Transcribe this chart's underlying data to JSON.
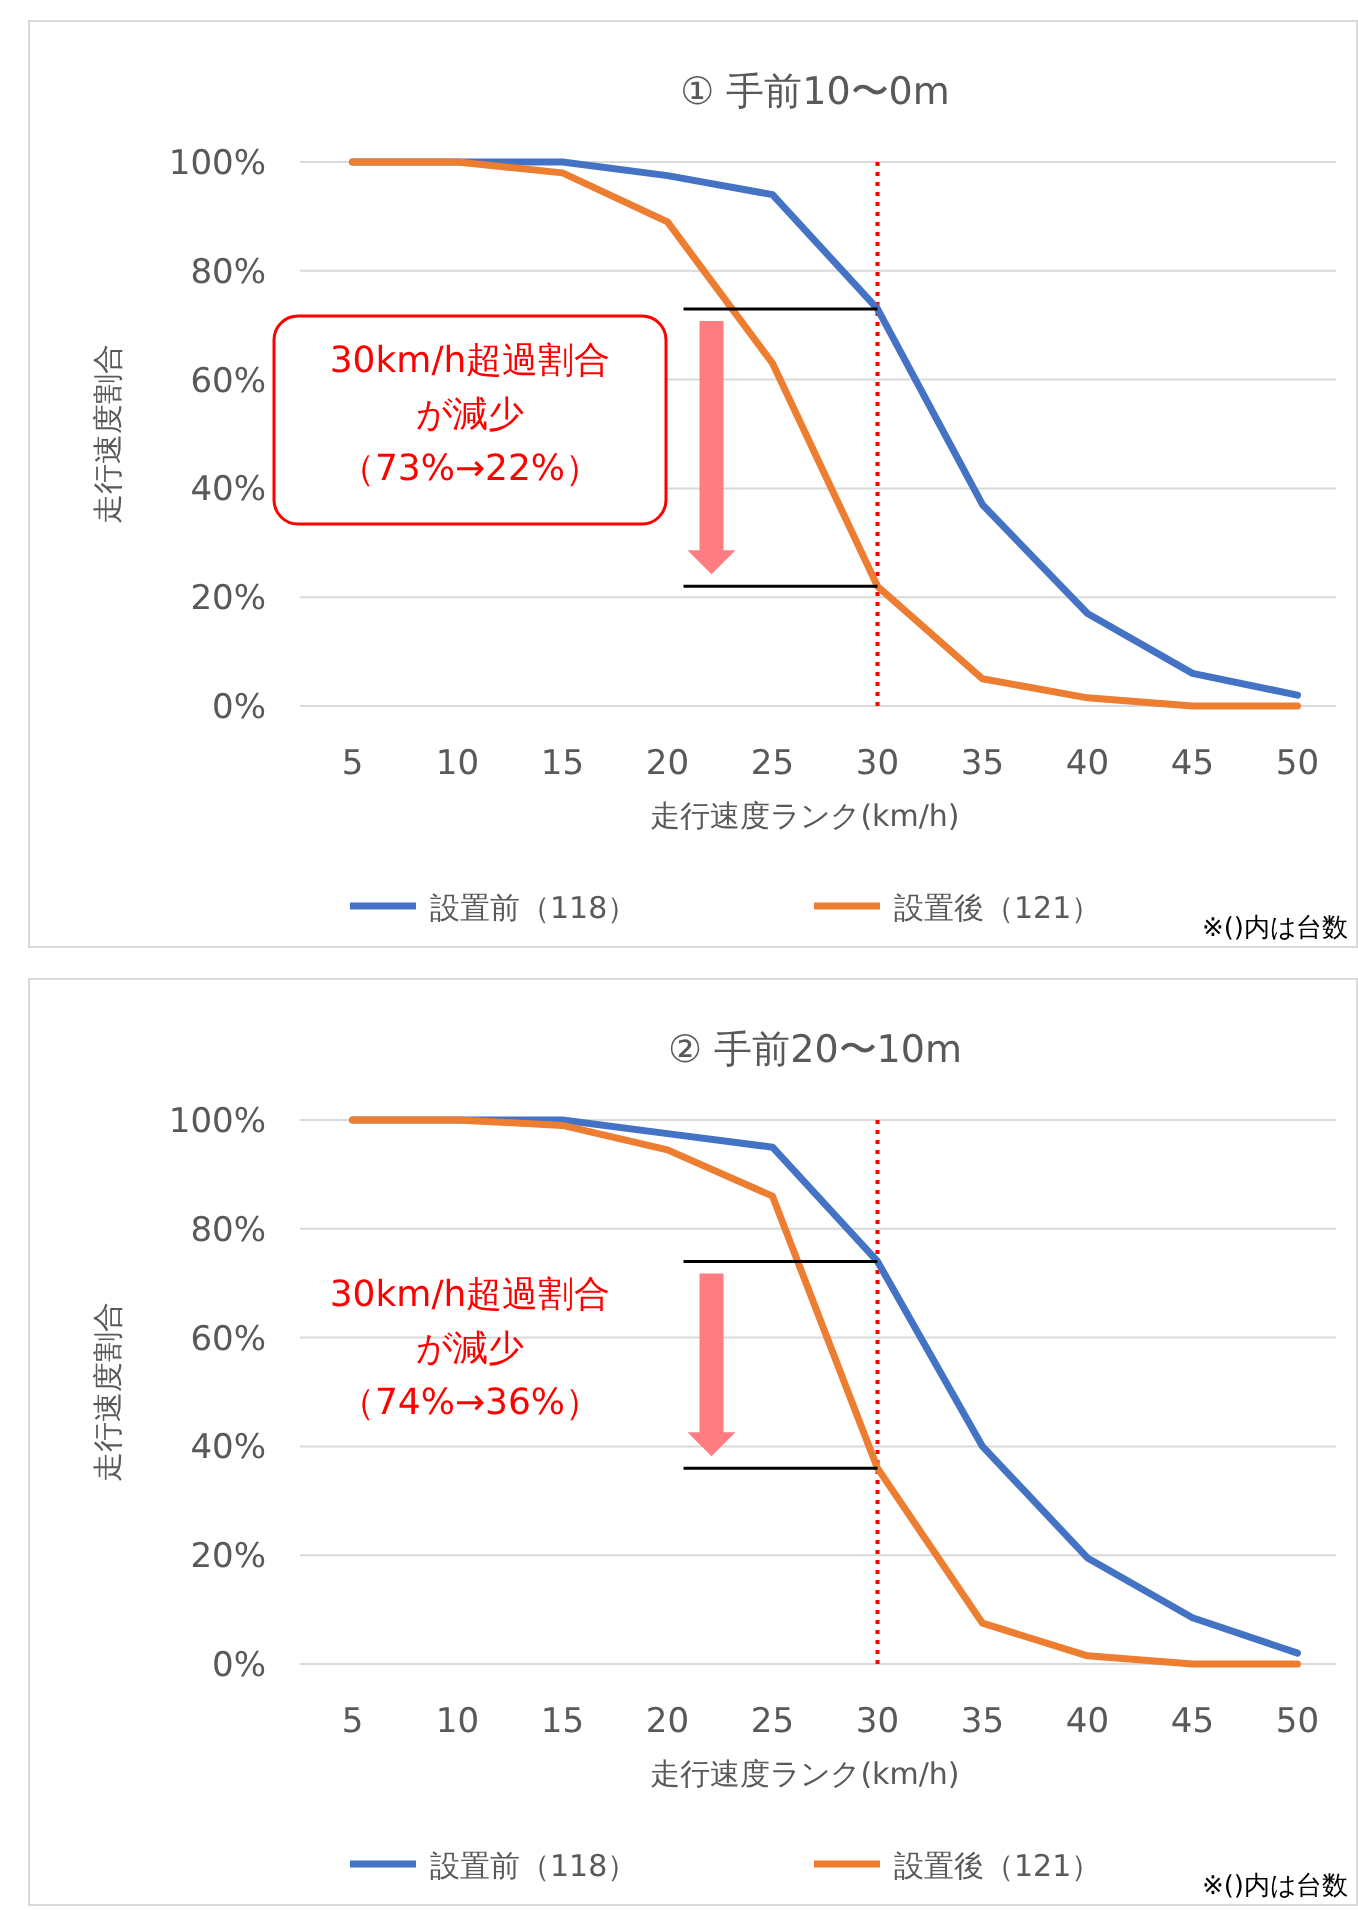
{
  "chart_data": [
    {
      "type": "line",
      "title": "① 手前10〜0m",
      "xlabel": "走行速度ランク(km/h)",
      "ylabel": "走行速度割合",
      "categories": [
        "5",
        "10",
        "15",
        "20",
        "25",
        "30",
        "35",
        "40",
        "45",
        "50"
      ],
      "series": [
        {
          "name": "設置前（118）",
          "color": "#4472c4",
          "values": [
            100,
            100,
            100,
            97.5,
            94,
            73,
            37,
            17,
            6,
            2
          ]
        },
        {
          "name": "設置後（121）",
          "color": "#ed7d31",
          "values": [
            100,
            100,
            98,
            89,
            63,
            22,
            5,
            1.5,
            0,
            0
          ]
        }
      ],
      "ylim": [
        0,
        100
      ],
      "yticks": [
        {
          "value": 0,
          "label": "0%"
        },
        {
          "value": 20,
          "label": "20%"
        },
        {
          "value": 40,
          "label": "40%"
        },
        {
          "value": 60,
          "label": "60%"
        },
        {
          "value": 80,
          "label": "80%"
        },
        {
          "value": 100,
          "label": "100%"
        }
      ],
      "grid": "y",
      "legend": "bottom",
      "marker": "none",
      "line_style": "solid",
      "ref_lines": [
        {
          "axis": "x",
          "value": "30",
          "color": "#ff0000",
          "line_style": "dotted"
        }
      ],
      "annotations": [
        "30km/h超過割合",
        "が減少",
        "（73%→22%）",
        "※()内は台数"
      ]
    },
    {
      "type": "line",
      "title": "② 手前20〜10m",
      "xlabel": "走行速度ランク(km/h)",
      "ylabel": "走行速度割合",
      "categories": [
        "5",
        "10",
        "15",
        "20",
        "25",
        "30",
        "35",
        "40",
        "45",
        "50"
      ],
      "series": [
        {
          "name": "設置前（118）",
          "color": "#4472c4",
          "values": [
            100,
            100,
            100,
            97.5,
            95,
            74,
            40,
            19.5,
            8.5,
            2
          ]
        },
        {
          "name": "設置後（121）",
          "color": "#ed7d31",
          "values": [
            100,
            100,
            99,
            94.5,
            86,
            36,
            7.5,
            1.5,
            0,
            0
          ]
        }
      ],
      "ylim": [
        0,
        100
      ],
      "yticks": [
        {
          "value": 0,
          "label": "0%"
        },
        {
          "value": 20,
          "label": "20%"
        },
        {
          "value": 40,
          "label": "40%"
        },
        {
          "value": 60,
          "label": "60%"
        },
        {
          "value": 80,
          "label": "80%"
        },
        {
          "value": 100,
          "label": "100%"
        }
      ],
      "grid": "y",
      "legend": "bottom",
      "marker": "none",
      "line_style": "solid",
      "ref_lines": [
        {
          "axis": "x",
          "value": "30",
          "color": "#ff0000",
          "line_style": "dotted"
        }
      ],
      "annotations": [
        "30km/h超過割合",
        "が減少",
        "（74%→36%）",
        "※()内は台数"
      ]
    }
  ]
}
